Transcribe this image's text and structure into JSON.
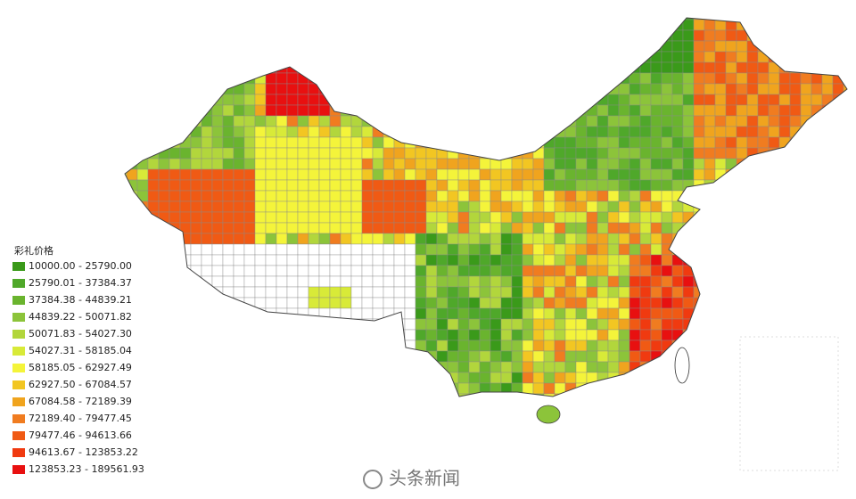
{
  "legend": {
    "title": "彩礼价格",
    "classes": [
      {
        "label": "10000.00 - 25790.00",
        "color": "#3a9a1a"
      },
      {
        "label": "25790.01 - 37384.37",
        "color": "#4fa82a"
      },
      {
        "label": "37384.38 - 44839.21",
        "color": "#6ab42e"
      },
      {
        "label": "44839.22 - 50071.82",
        "color": "#8cc43a"
      },
      {
        "label": "50071.83 - 54027.30",
        "color": "#b2d63c"
      },
      {
        "label": "54027.31 - 58185.04",
        "color": "#d8ea38"
      },
      {
        "label": "58185.05 - 62927.49",
        "color": "#f4f43a"
      },
      {
        "label": "62927.50 - 67084.57",
        "color": "#f2c622"
      },
      {
        "label": "67084.58 - 72189.39",
        "color": "#f0a41e"
      },
      {
        "label": "72189.40 - 79477.45",
        "color": "#f07c20"
      },
      {
        "label": "79477.46 - 94613.66",
        "color": "#f05a14"
      },
      {
        "label": "94613.67 - 123853.22",
        "color": "#f03a10"
      },
      {
        "label": "123853.23 - 189561.93",
        "color": "#e81010"
      }
    ]
  },
  "watermark": "头条新闻"
}
